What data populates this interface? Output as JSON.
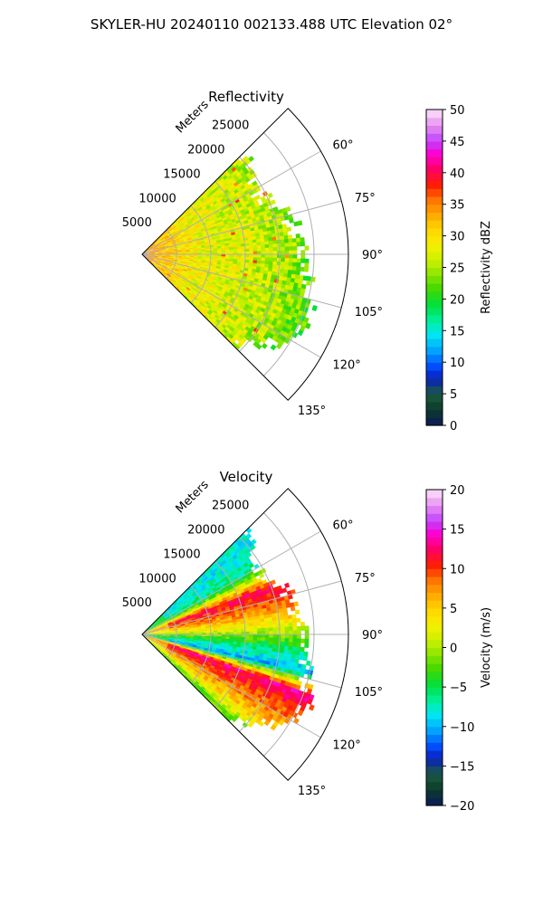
{
  "suptitle": "SKYLER-HU  20240110  002133.488 UTC Elevation 02°",
  "colors": {
    "grid": "#b0b0b0",
    "axis": "#000000"
  },
  "chart_data": [
    {
      "type": "heatmap",
      "subtype": "polar-ppi-sector",
      "title": "Reflectivity",
      "range_label": "Meters",
      "azimuth_range_deg": [
        45,
        135
      ],
      "range_lim_m": [
        0,
        30000
      ],
      "range_ticks": [
        "5000",
        "10000",
        "15000",
        "20000",
        "25000"
      ],
      "azimuth_ticks": [
        "60°",
        "75°",
        "90°",
        "105°",
        "120°",
        "135°"
      ],
      "colorbar": {
        "label": "Reflectivity dBZ",
        "lim": [
          0,
          50
        ],
        "ticks": [
          "0",
          "5",
          "10",
          "15",
          "20",
          "25",
          "30",
          "35",
          "40",
          "45",
          "50"
        ],
        "cmap": "pyart_HomeyerRainbow-like"
      },
      "field_profile": [
        {
          "range_m": 0,
          "value": 35
        },
        {
          "range_m": 4000,
          "value": 31
        },
        {
          "range_m": 9000,
          "value": 28
        },
        {
          "range_m": 15000,
          "value": 27
        },
        {
          "range_m": 21000,
          "value": 25
        },
        {
          "range_m": 25000,
          "value": 22
        }
      ],
      "echo_edge_m": [
        {
          "azimuth_deg": 48,
          "range_m": 21000
        },
        {
          "azimuth_deg": 55,
          "range_m": 19500
        },
        {
          "azimuth_deg": 63,
          "range_m": 19000
        },
        {
          "azimuth_deg": 72,
          "range_m": 21500
        },
        {
          "azimuth_deg": 82,
          "range_m": 22500
        },
        {
          "azimuth_deg": 92,
          "range_m": 23500
        },
        {
          "azimuth_deg": 102,
          "range_m": 24500
        },
        {
          "azimuth_deg": 112,
          "range_m": 26000
        },
        {
          "azimuth_deg": 120,
          "range_m": 25000
        },
        {
          "azimuth_deg": 128,
          "range_m": 21000
        },
        {
          "azimuth_deg": 134,
          "range_m": 18500
        }
      ]
    },
    {
      "type": "heatmap",
      "subtype": "polar-ppi-sector",
      "title": "Velocity",
      "range_label": "Meters",
      "azimuth_range_deg": [
        45,
        135
      ],
      "range_lim_m": [
        0,
        30000
      ],
      "range_ticks": [
        "5000",
        "10000",
        "15000",
        "20000",
        "25000"
      ],
      "azimuth_ticks": [
        "60°",
        "75°",
        "90°",
        "105°",
        "120°",
        "135°"
      ],
      "colorbar": {
        "label": "Velocity (m/s)",
        "lim": [
          -20,
          20
        ],
        "ticks": [
          "−20",
          "−15",
          "−10",
          "−5",
          "0",
          "5",
          "10",
          "15",
          "20"
        ],
        "cmap": "pyart_HomeyerRainbow-like"
      },
      "azimuth_profile": [
        {
          "azimuth_deg": 50,
          "value": -8
        },
        {
          "azimuth_deg": 60,
          "value": -6
        },
        {
          "azimuth_deg": 70,
          "value": 12
        },
        {
          "azimuth_deg": 80,
          "value": 7
        },
        {
          "azimuth_deg": 88,
          "value": 1
        },
        {
          "azimuth_deg": 95,
          "value": -5
        },
        {
          "azimuth_deg": 103,
          "value": -10
        },
        {
          "azimuth_deg": 110,
          "value": 13
        },
        {
          "azimuth_deg": 118,
          "value": 9
        },
        {
          "azimuth_deg": 126,
          "value": 5
        },
        {
          "azimuth_deg": 133,
          "value": -2
        }
      ],
      "echo_edge_m": [
        {
          "azimuth_deg": 48,
          "range_m": 21000
        },
        {
          "azimuth_deg": 55,
          "range_m": 19500
        },
        {
          "azimuth_deg": 63,
          "range_m": 19000
        },
        {
          "azimuth_deg": 72,
          "range_m": 21500
        },
        {
          "azimuth_deg": 82,
          "range_m": 22500
        },
        {
          "azimuth_deg": 92,
          "range_m": 23500
        },
        {
          "azimuth_deg": 102,
          "range_m": 24500
        },
        {
          "azimuth_deg": 112,
          "range_m": 26000
        },
        {
          "azimuth_deg": 120,
          "range_m": 25000
        },
        {
          "azimuth_deg": 128,
          "range_m": 21000
        },
        {
          "azimuth_deg": 134,
          "range_m": 18500
        }
      ]
    }
  ]
}
